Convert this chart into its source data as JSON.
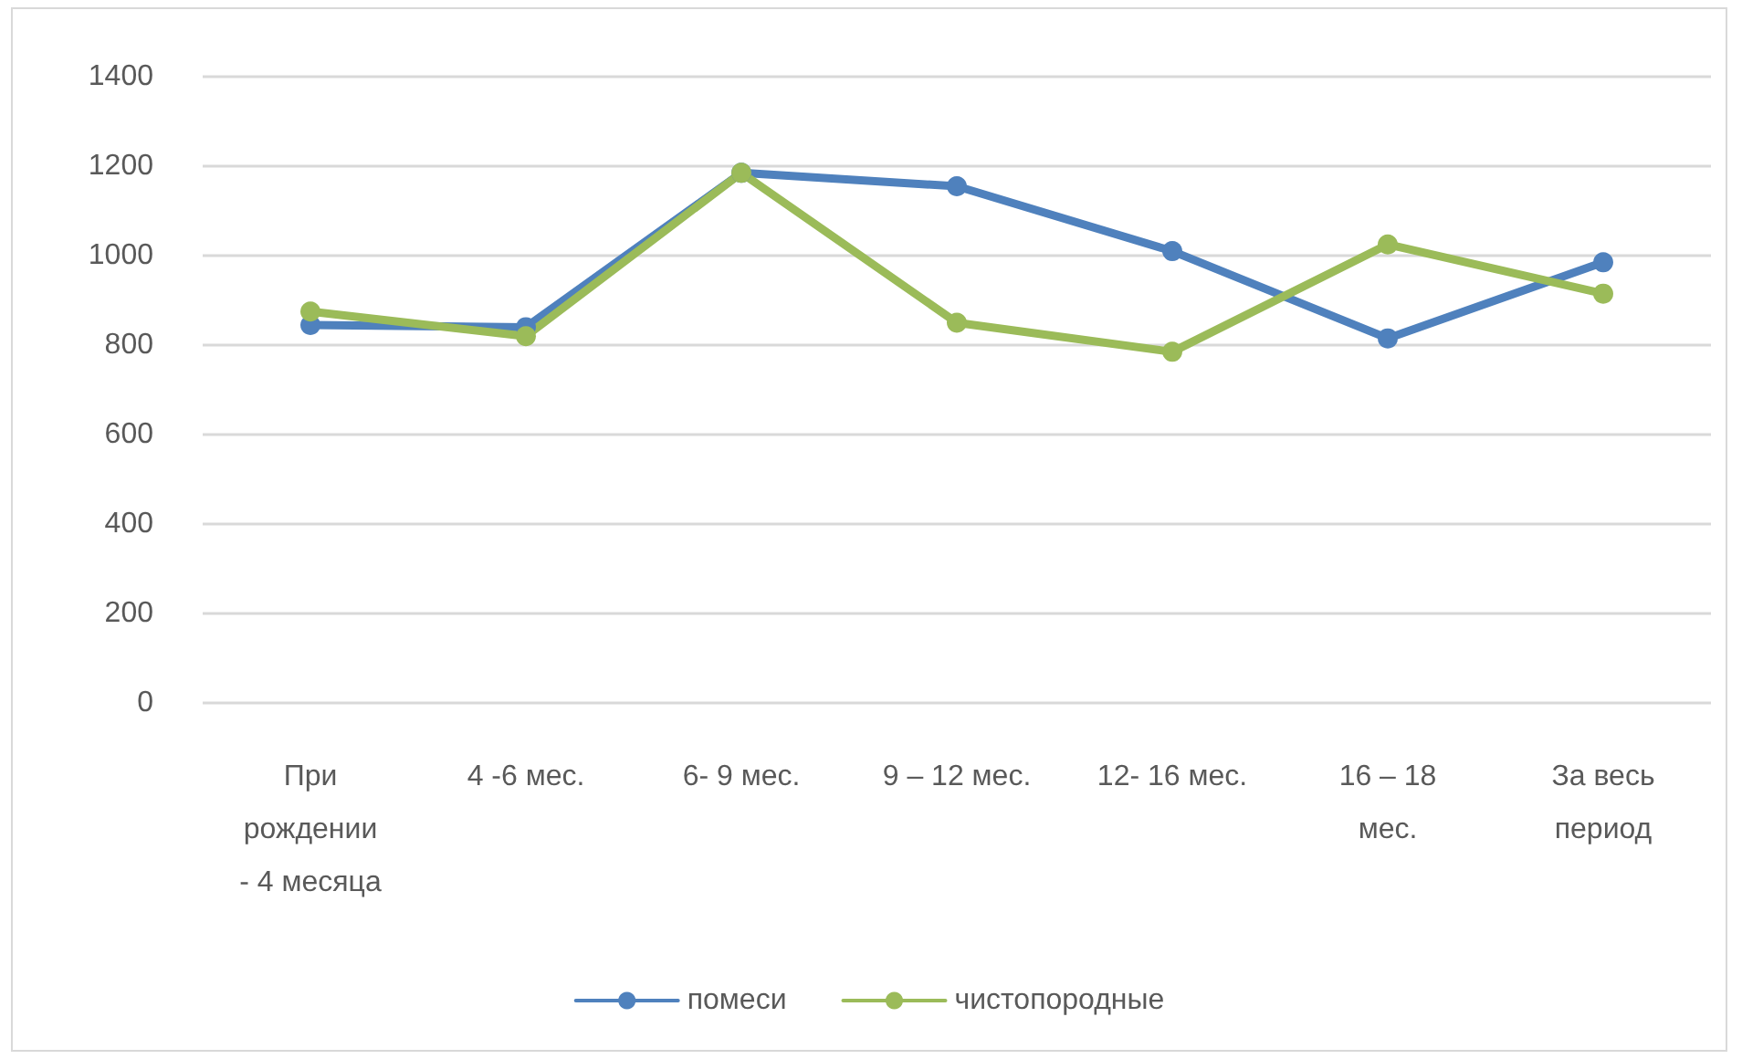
{
  "chart_data": {
    "type": "line",
    "categories": [
      "При рождении - 4 месяца",
      "4 -6 мес.",
      "6- 9 мес.",
      "9 – 12 мес.",
      "12- 16 мес.",
      "16 – 18 мес.",
      "За весь период"
    ],
    "series": [
      {
        "name": "помеси",
        "color": "#4f81bd",
        "values": [
          845,
          840,
          1185,
          1155,
          1010,
          815,
          985
        ]
      },
      {
        "name": "чистопородные",
        "color": "#9bbb59",
        "values": [
          875,
          820,
          1185,
          850,
          785,
          1025,
          915
        ]
      }
    ],
    "ylim": [
      0,
      1400
    ],
    "yticks": [
      0,
      200,
      400,
      600,
      800,
      1000,
      1200,
      1400
    ],
    "grid": "y",
    "legend": "bottom",
    "marker": "circle",
    "line_style": "solid"
  }
}
